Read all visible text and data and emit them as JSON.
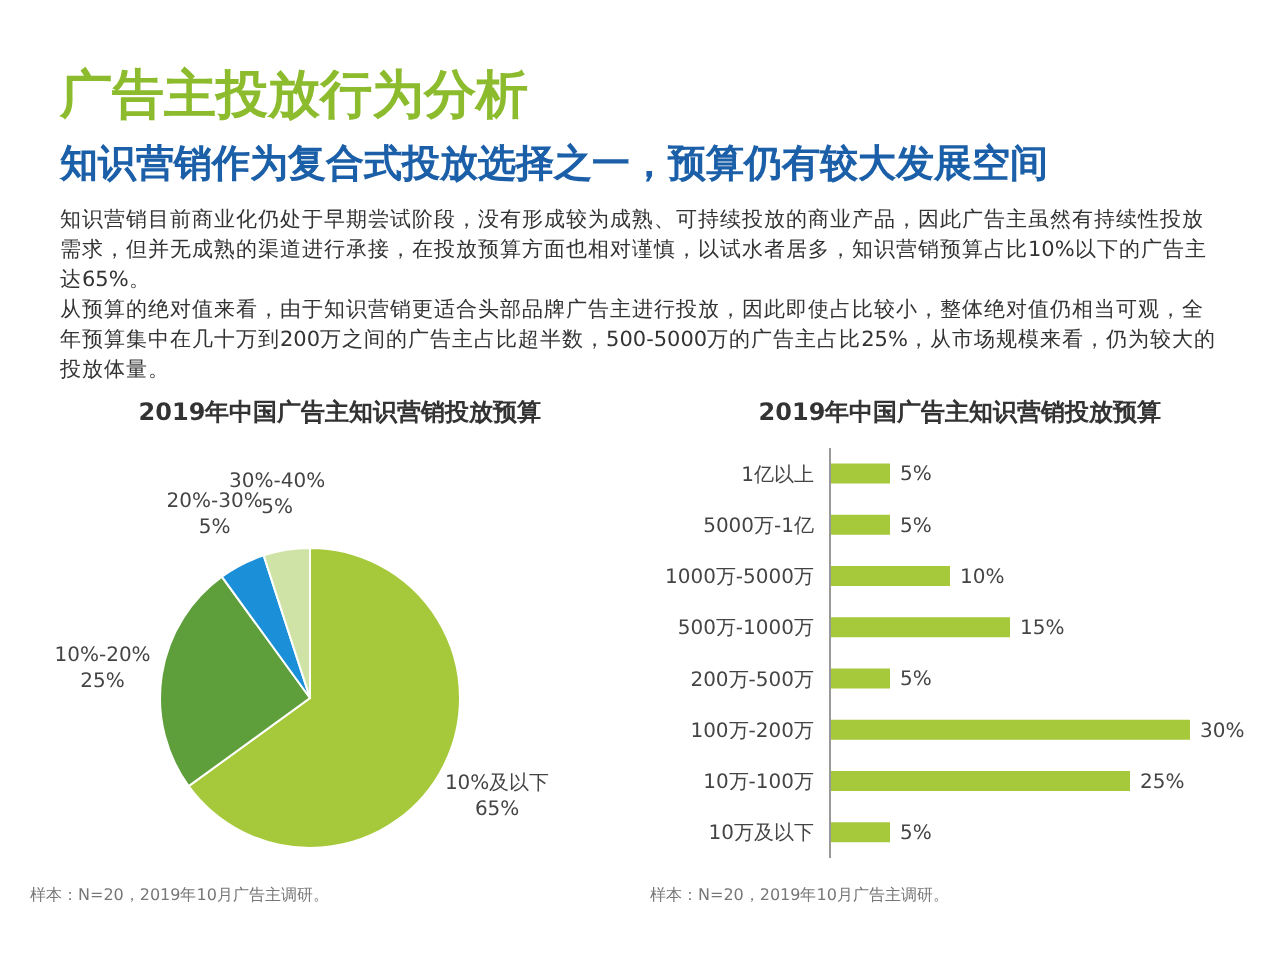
{
  "chart_data": [
    {
      "type": "other",
      "title": "广告主投放行为分析",
      "subtitle": "知识营销作为复合式投放选择之一，预算仍有较大发展空间",
      "annotations": [
        "知识营销目前商业化仍处于早期尝试阶段，没有形成较为成熟、可持续投放的商业产品，因此广告主虽然有持续性投放需求，但并无成熟的渠道进行承接，在投放预算方面也相对谨慎，以试水者居多，知识营销预算占比10%以下的广告主达65%。",
        "从预算的绝对值来看，由于知识营销更适合头部品牌广告主进行投放，因此即使占比较小，整体绝对值仍相当可观，全年预算集中在几十万到200万之间的广告主占比超半数，500-5000万的广告主占比25%，从市场规模来看，仍为较大的投放体量。"
      ]
    },
    {
      "type": "pie",
      "title": "2019年中国广告主知识营销投放预算",
      "categories": [
        "10%及以下",
        "10%-20%",
        "20%-30%",
        "30%-40%"
      ],
      "values": [
        65,
        25,
        5,
        5
      ],
      "value_labels": [
        "65%",
        "25%",
        "5%",
        "5%"
      ],
      "colors": [
        "#a6c93c",
        "#5e9f3b",
        "#1b8fd8",
        "#cfe3a6"
      ],
      "annotations": [
        "样本：N=20，2019年10月广告主调研。"
      ]
    },
    {
      "type": "bar",
      "orientation": "horizontal",
      "title": "2019年中国广告主知识营销投放预算",
      "categories": [
        "1亿以上",
        "5000万-1亿",
        "1000万-5000万",
        "500万-1000万",
        "200万-500万",
        "100万-200万",
        "10万-100万",
        "10万及以下"
      ],
      "values": [
        5,
        5,
        10,
        15,
        5,
        30,
        25,
        5
      ],
      "value_labels": [
        "5%",
        "5%",
        "10%",
        "15%",
        "5%",
        "30%",
        "25%",
        "5%"
      ],
      "color": "#a6c93c",
      "annotations": [
        "样本：N=20，2019年10月广告主调研。"
      ]
    }
  ]
}
